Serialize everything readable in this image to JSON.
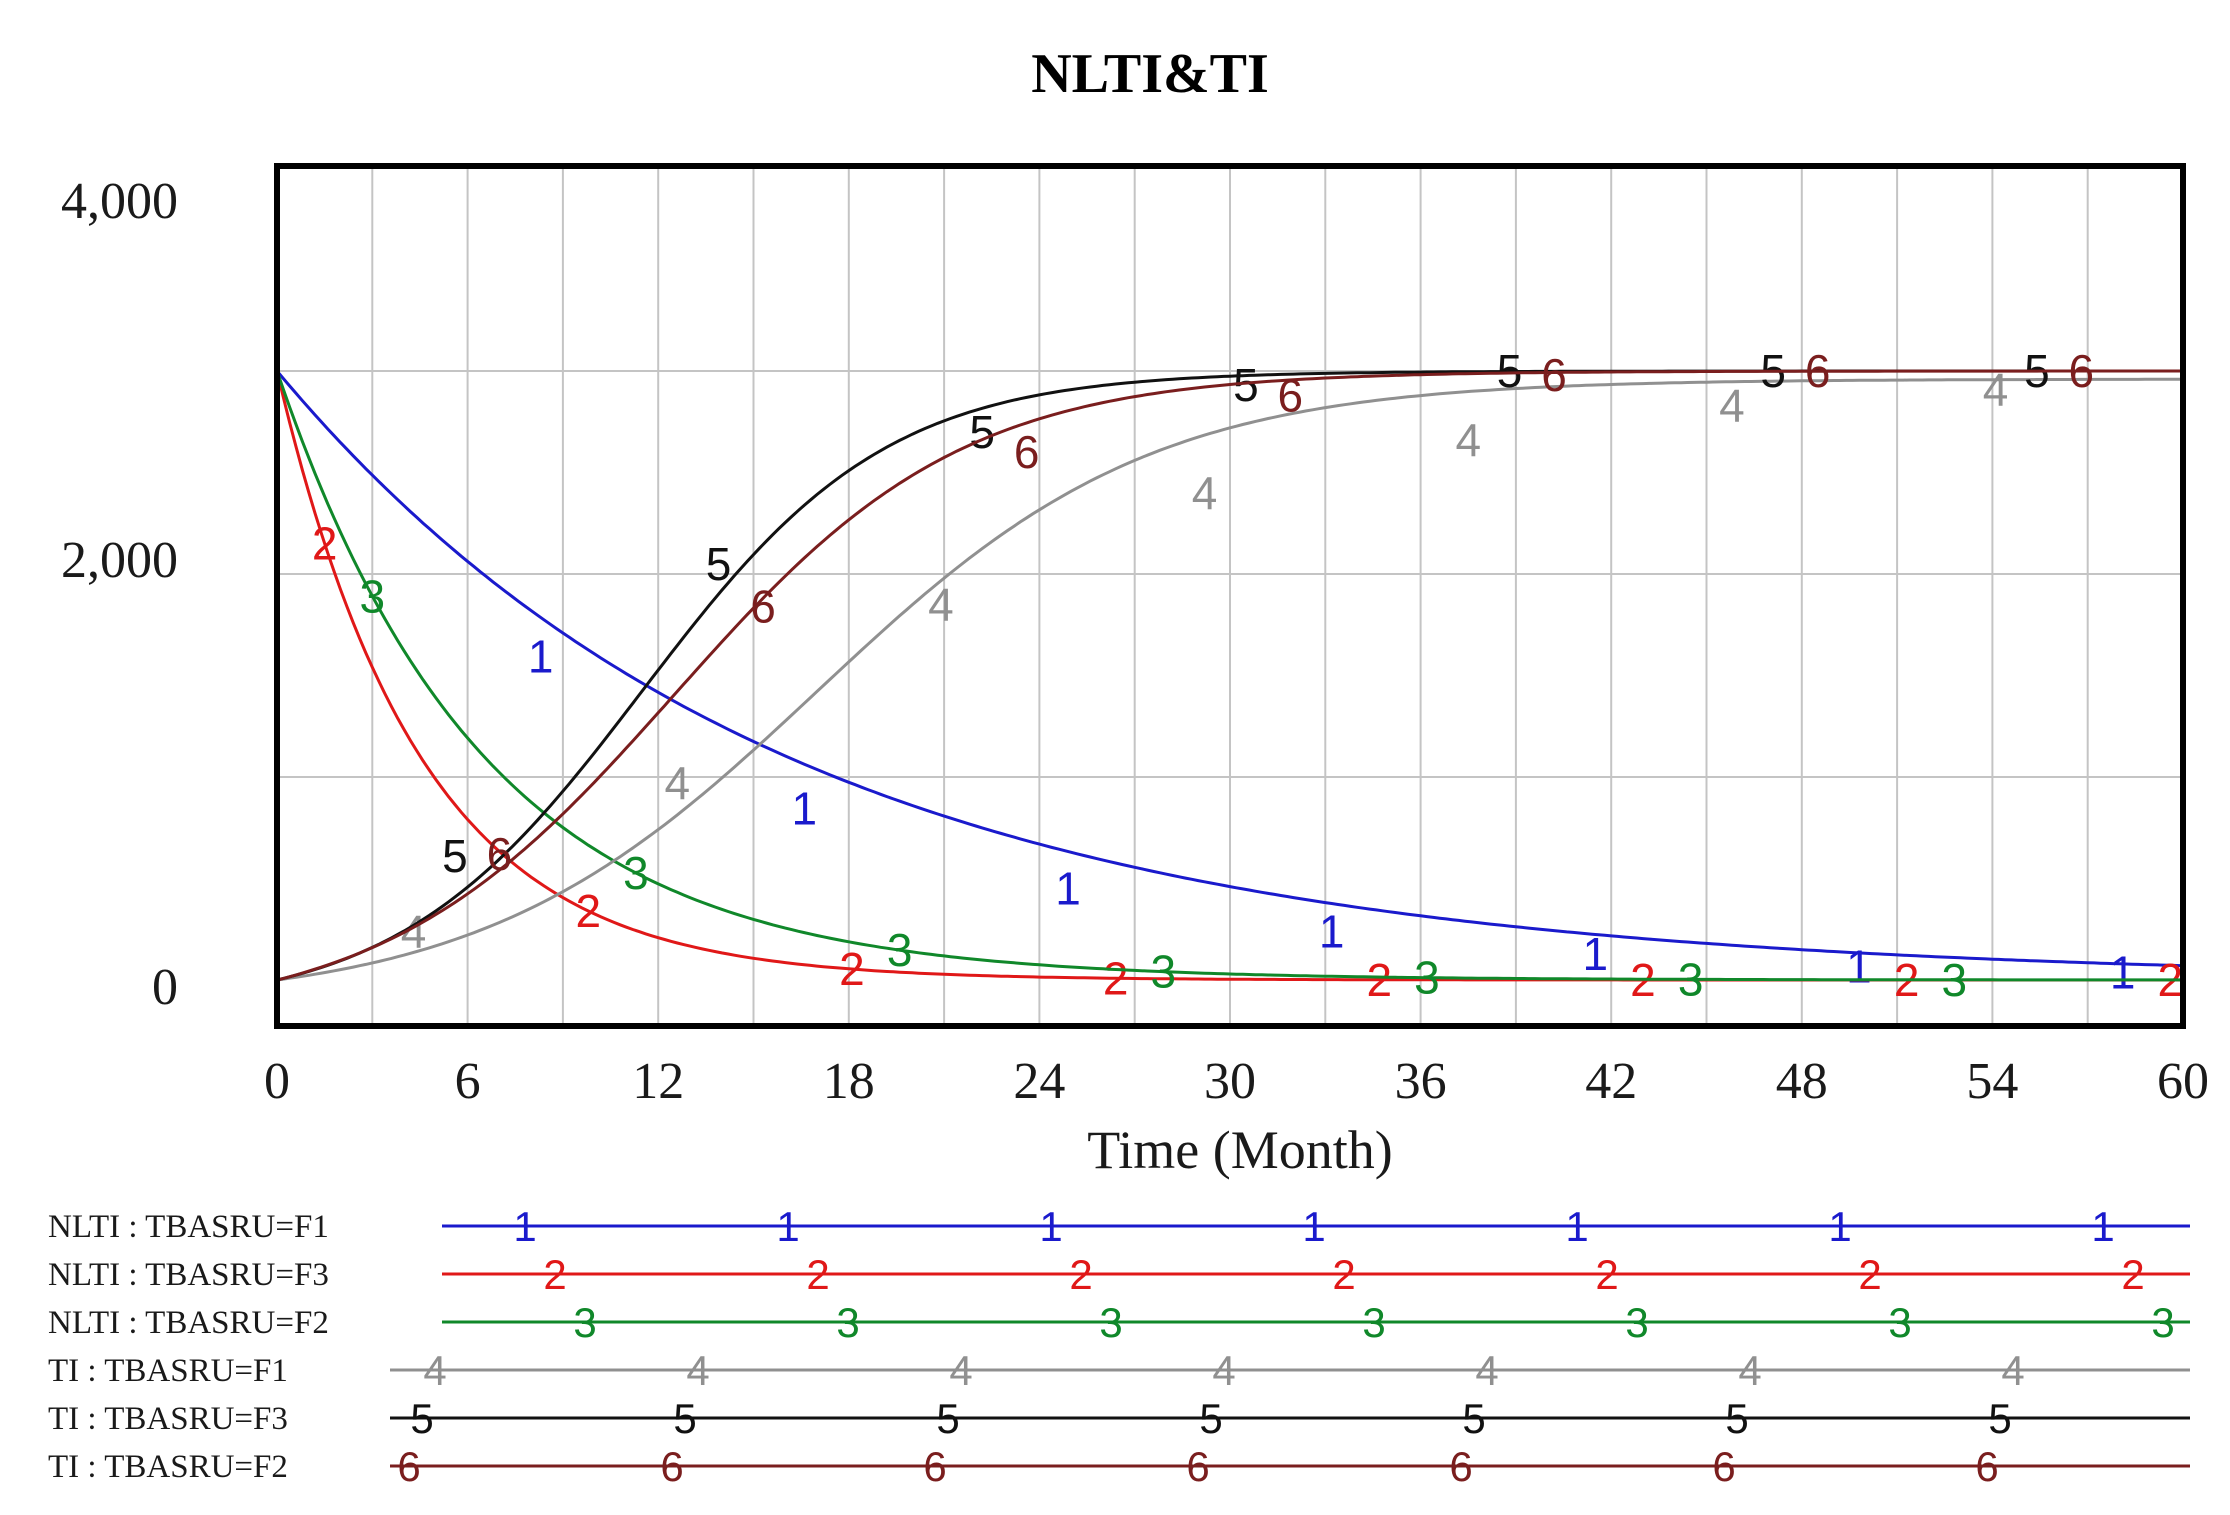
{
  "chart_data": {
    "type": "line",
    "title": "NLTI&TI",
    "xlabel": "Time (Month)",
    "ylabel": "",
    "xlim": [
      0,
      60
    ],
    "ylim": [
      -200,
      4000
    ],
    "x_ticks": [
      0,
      6,
      12,
      18,
      24,
      30,
      36,
      42,
      48,
      54,
      60
    ],
    "y_ticks": [
      4000,
      2000,
      0
    ],
    "y_tick_labels": [
      "4,000",
      "2,000",
      "0"
    ],
    "grid": true,
    "legend_position": "bottom",
    "series": [
      {
        "name": "NLTI : TBASRU=F1",
        "marker": "1",
        "color": "#1a1acc",
        "kind": "decay",
        "start": 3000,
        "tau": 16,
        "x_values": [
          0,
          8.3,
          16.6,
          24.9,
          33.2,
          41.5,
          49.8,
          58.1
        ],
        "values": [
          3000,
          1593,
          846,
          450,
          239,
          127,
          67,
          36
        ]
      },
      {
        "name": "NLTI : TBASRU=F3",
        "marker": "2",
        "color": "#e01818",
        "kind": "decay",
        "start": 3000,
        "tau": 4.5,
        "x_values": [
          0,
          1.5,
          9.8,
          18.1,
          26.4,
          34.7,
          43,
          51.3,
          59.6
        ],
        "values": [
          3000,
          2150,
          341,
          53,
          8,
          1,
          0,
          0,
          0
        ]
      },
      {
        "name": "NLTI : TBASRU=F2",
        "marker": "3",
        "color": "#10882a",
        "kind": "decay",
        "start": 3000,
        "tau": 6.5,
        "x_values": [
          0,
          3.0,
          11.3,
          19.6,
          27.9,
          36.2,
          44.5,
          52.8
        ],
        "values": [
          3000,
          1890,
          528,
          148,
          41,
          12,
          3,
          1
        ]
      },
      {
        "name": "TI : TBASRU=F1",
        "marker": "4",
        "color": "#909090",
        "kind": "logistic",
        "L": 2960,
        "k": 0.19,
        "x0": 17,
        "x_values": [
          0,
          4.3,
          12.6,
          20.9,
          29.2,
          37.5,
          45.8,
          54.1
        ],
        "values": [
          0,
          240,
          970,
          1850,
          2400,
          2660,
          2830,
          2910
        ]
      },
      {
        "name": "TI : TBASRU=F3",
        "marker": "5",
        "color": "#111111",
        "kind": "logistic",
        "L": 3000,
        "k": 0.26,
        "x0": 11.5,
        "x_values": [
          0,
          5.6,
          13.9,
          22.2,
          30.5,
          38.8,
          47.1,
          55.4
        ],
        "values": [
          0,
          610,
          2050,
          2700,
          2930,
          3000,
          3000,
          3000
        ]
      },
      {
        "name": "TI : TBASRU=F2",
        "marker": "6",
        "color": "#7a1e1e",
        "kind": "logistic",
        "L": 3000,
        "k": 0.22,
        "x0": 12.5,
        "x_values": [
          0,
          7.0,
          15.3,
          23.6,
          31.9,
          40.2,
          48.5,
          56.8
        ],
        "values": [
          0,
          620,
          1840,
          2600,
          2880,
          2980,
          3000,
          3000
        ]
      }
    ]
  }
}
